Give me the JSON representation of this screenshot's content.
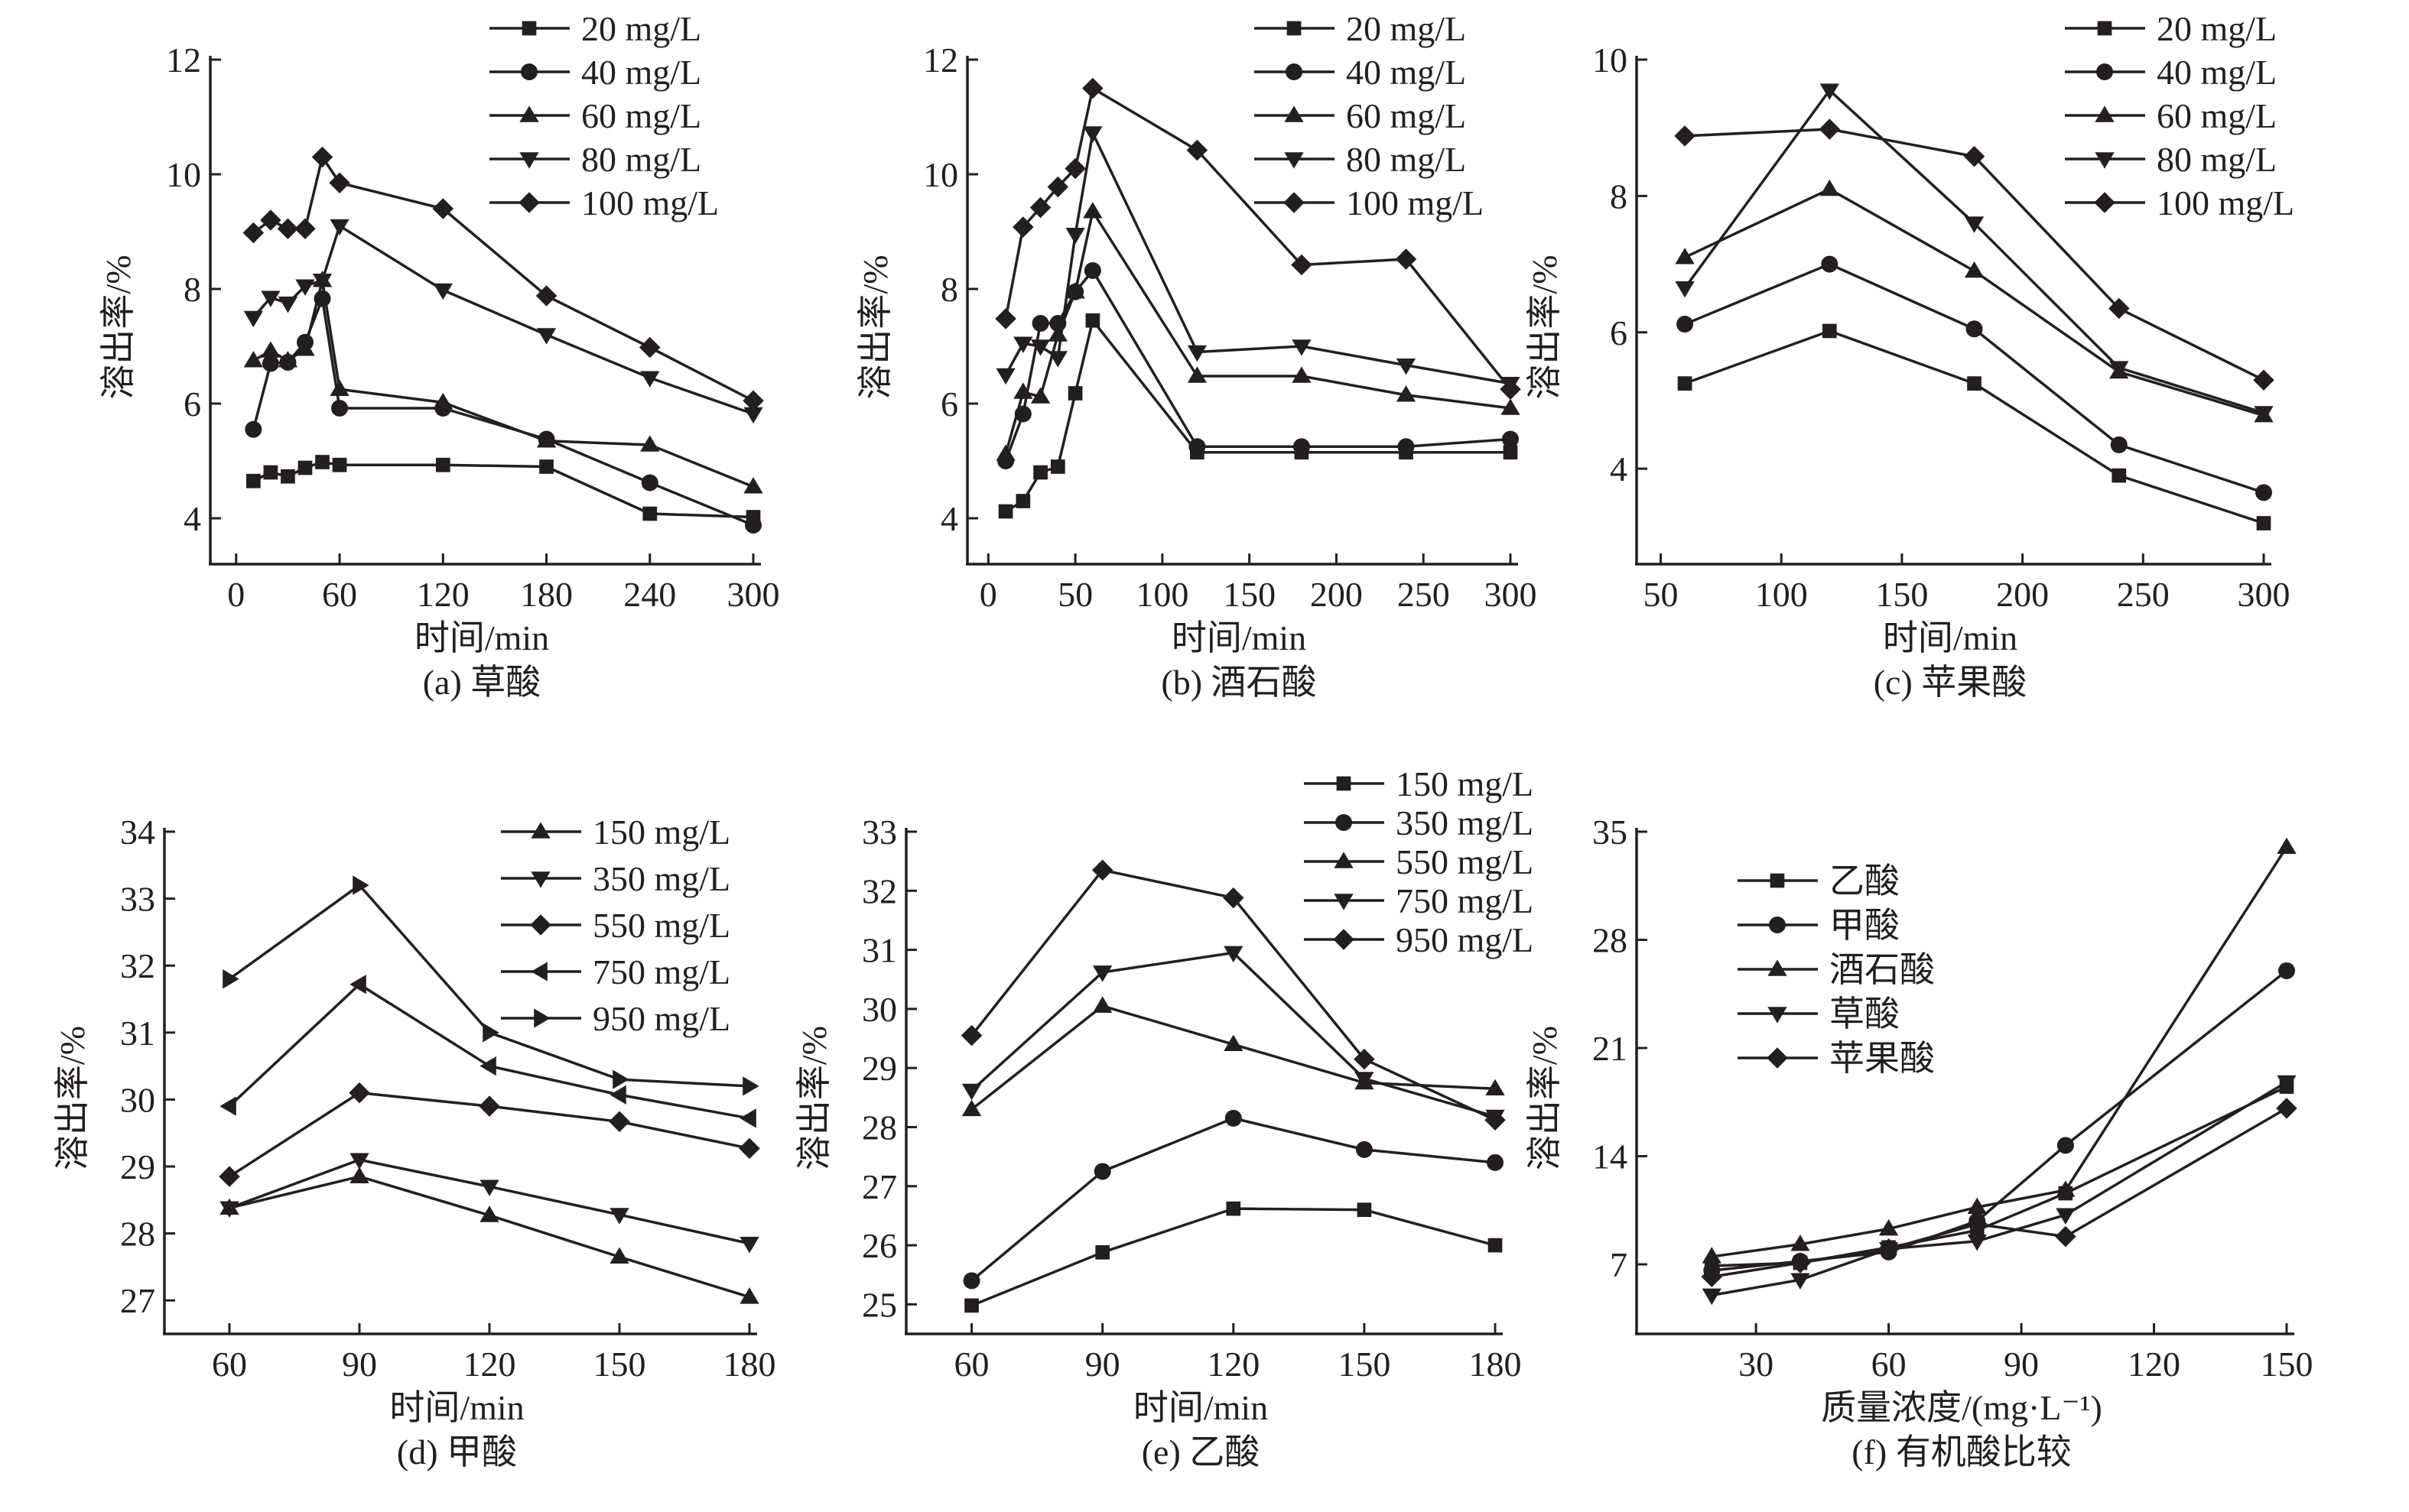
{
  "chart_data": [
    {
      "id": "a",
      "type": "line",
      "caption": "(a) 草酸",
      "xlabel": "时间/min",
      "ylabel": "溶出率/%",
      "xlim": [
        -15,
        300
      ],
      "ylim": [
        3.2,
        12
      ],
      "xticks": [
        0,
        60,
        120,
        180,
        240,
        300
      ],
      "yticks": [
        4,
        6,
        8,
        10,
        12
      ],
      "legend_position": "top-right",
      "x": [
        10,
        20,
        30,
        40,
        50,
        60,
        120,
        180,
        240,
        300
      ],
      "series": [
        {
          "name": "20 mg/L",
          "marker": "square",
          "values": [
            4.65,
            4.8,
            4.73,
            4.88,
            4.98,
            4.93,
            4.93,
            4.9,
            4.08,
            4.02
          ]
        },
        {
          "name": "40 mg/L",
          "marker": "circle",
          "values": [
            5.55,
            6.7,
            6.72,
            7.07,
            7.83,
            5.92,
            5.92,
            5.38,
            4.62,
            3.88
          ]
        },
        {
          "name": "60 mg/L",
          "marker": "triangle-up",
          "values": [
            6.75,
            6.92,
            6.75,
            6.95,
            8.15,
            6.25,
            6.02,
            5.35,
            5.28,
            4.55
          ]
        },
        {
          "name": "80 mg/L",
          "marker": "triangle-down",
          "values": [
            7.5,
            7.85,
            7.75,
            8.05,
            8.15,
            9.1,
            7.98,
            7.2,
            6.45,
            5.82
          ]
        },
        {
          "name": "100 mg/L",
          "marker": "diamond",
          "values": [
            8.98,
            9.2,
            9.05,
            9.05,
            10.3,
            9.85,
            9.4,
            7.88,
            6.98,
            6.05
          ]
        }
      ]
    },
    {
      "id": "b",
      "type": "line",
      "caption": "(b) 酒石酸",
      "xlabel": "时间/min",
      "ylabel": "溶出率/%",
      "xlim": [
        -12,
        300
      ],
      "ylim": [
        3.2,
        12
      ],
      "xticks": [
        0,
        50,
        100,
        150,
        200,
        250,
        300
      ],
      "yticks": [
        4,
        6,
        8,
        10,
        12
      ],
      "legend_position": "top-right",
      "x": [
        10,
        20,
        30,
        40,
        50,
        60,
        120,
        180,
        240,
        300
      ],
      "series": [
        {
          "name": "20 mg/L",
          "marker": "square",
          "values": [
            4.12,
            4.3,
            4.8,
            4.9,
            6.18,
            7.45,
            5.15,
            5.15,
            5.15,
            5.15
          ]
        },
        {
          "name": "40 mg/L",
          "marker": "circle",
          "values": [
            5.0,
            5.82,
            7.4,
            7.4,
            7.95,
            8.32,
            5.25,
            5.25,
            5.25,
            5.38
          ]
        },
        {
          "name": "60 mg/L",
          "marker": "triangle-up",
          "values": [
            5.12,
            6.2,
            6.12,
            7.2,
            7.95,
            9.35,
            6.48,
            6.48,
            6.15,
            5.92
          ]
        },
        {
          "name": "80 mg/L",
          "marker": "triangle-down",
          "values": [
            6.5,
            7.05,
            7.0,
            6.8,
            8.95,
            10.72,
            6.9,
            7.0,
            6.67,
            6.35
          ]
        },
        {
          "name": "100 mg/L",
          "marker": "diamond",
          "values": [
            7.48,
            9.08,
            9.42,
            9.78,
            10.1,
            11.5,
            10.42,
            8.42,
            8.52,
            6.25
          ]
        }
      ]
    },
    {
      "id": "c",
      "type": "line",
      "caption": "(c) 苹果酸",
      "xlabel": "时间/min",
      "ylabel": "溶出率/%",
      "xlim": [
        40,
        300
      ],
      "ylim": [
        2.6,
        10
      ],
      "xticks": [
        50,
        100,
        150,
        200,
        250,
        300
      ],
      "yticks": [
        4,
        6,
        8,
        10
      ],
      "legend_position": "top-right",
      "x": [
        60,
        120,
        180,
        240,
        300
      ],
      "series": [
        {
          "name": "20 mg/L",
          "marker": "square",
          "values": [
            5.25,
            6.02,
            5.25,
            3.9,
            3.2
          ]
        },
        {
          "name": "40 mg/L",
          "marker": "circle",
          "values": [
            6.12,
            7.0,
            6.05,
            4.35,
            3.65
          ]
        },
        {
          "name": "60 mg/L",
          "marker": "triangle-up",
          "values": [
            7.1,
            8.1,
            6.9,
            5.42,
            4.78
          ]
        },
        {
          "name": "80 mg/L",
          "marker": "triangle-down",
          "values": [
            6.65,
            9.55,
            7.6,
            5.48,
            4.82
          ]
        },
        {
          "name": "100 mg/L",
          "marker": "diamond",
          "values": [
            8.88,
            8.98,
            8.58,
            6.35,
            5.3
          ]
        }
      ]
    },
    {
      "id": "d",
      "type": "line",
      "caption": "(d) 甲酸",
      "xlabel": "时间/min",
      "ylabel": "溶出率/%",
      "xlim": [
        45,
        180
      ],
      "ylim": [
        26.5,
        34
      ],
      "xticks": [
        60,
        90,
        120,
        150,
        180
      ],
      "yticks": [
        27,
        28,
        29,
        30,
        31,
        32,
        33,
        34
      ],
      "legend_position": "top-right",
      "x": [
        60,
        90,
        120,
        150,
        180
      ],
      "series": [
        {
          "name": "150 mg/L",
          "marker": "triangle-up",
          "values": [
            28.38,
            28.85,
            28.27,
            27.65,
            27.05
          ]
        },
        {
          "name": "350 mg/L",
          "marker": "triangle-down",
          "values": [
            28.38,
            29.1,
            28.7,
            28.28,
            27.85
          ]
        },
        {
          "name": "550 mg/L",
          "marker": "diamond",
          "values": [
            28.85,
            30.1,
            29.9,
            29.67,
            29.27
          ]
        },
        {
          "name": "750 mg/L",
          "marker": "triangle-left",
          "values": [
            29.9,
            31.72,
            30.5,
            30.07,
            29.72
          ]
        },
        {
          "name": "950 mg/L",
          "marker": "triangle-right",
          "values": [
            31.8,
            33.2,
            31.0,
            30.3,
            30.2
          ]
        }
      ]
    },
    {
      "id": "e",
      "type": "line",
      "caption": "(e) 乙酸",
      "xlabel": "时间/min",
      "ylabel": "溶出率/%",
      "xlim": [
        45,
        180
      ],
      "ylim": [
        24.5,
        33
      ],
      "xticks": [
        60,
        90,
        120,
        150,
        180
      ],
      "yticks": [
        25,
        26,
        27,
        28,
        29,
        30,
        31,
        32,
        33
      ],
      "legend_position": "top-right",
      "x": [
        60,
        90,
        120,
        150,
        180
      ],
      "series": [
        {
          "name": "150 mg/L",
          "marker": "square",
          "values": [
            24.98,
            25.88,
            26.62,
            26.6,
            26.0
          ]
        },
        {
          "name": "350 mg/L",
          "marker": "circle",
          "values": [
            25.4,
            27.25,
            28.15,
            27.62,
            27.4
          ]
        },
        {
          "name": "550 mg/L",
          "marker": "triangle-up",
          "values": [
            28.3,
            30.05,
            29.4,
            28.75,
            28.65
          ]
        },
        {
          "name": "750 mg/L",
          "marker": "triangle-down",
          "values": [
            28.62,
            30.62,
            30.95,
            28.82,
            28.18
          ]
        },
        {
          "name": "950 mg/L",
          "marker": "diamond",
          "values": [
            29.55,
            32.35,
            31.88,
            29.15,
            28.12
          ]
        }
      ]
    },
    {
      "id": "f",
      "type": "line",
      "caption": "(f) 有机酸比较",
      "xlabel": "质量浓度/(mg·L⁻¹)",
      "ylabel": "溶出率/%",
      "xlim": [
        3,
        150
      ],
      "ylim": [
        2.5,
        35
      ],
      "xticks": [
        30,
        60,
        90,
        120,
        150
      ],
      "yticks": [
        7,
        14,
        21,
        28,
        35
      ],
      "legend_position": "top-left",
      "x": [
        20,
        40,
        60,
        80,
        100,
        150
      ],
      "series": [
        {
          "name": "乙酸",
          "marker": "square",
          "values": [
            6.9,
            7.1,
            8.1,
            9.2,
            11.6,
            18.5
          ]
        },
        {
          "name": "甲酸",
          "marker": "circle",
          "values": [
            6.6,
            7.2,
            7.8,
            9.8,
            14.7,
            26.0
          ]
        },
        {
          "name": "酒石酸",
          "marker": "triangle-up",
          "values": [
            7.5,
            8.3,
            9.3,
            10.7,
            11.8,
            34.0
          ]
        },
        {
          "name": "草酸",
          "marker": "triangle-down",
          "values": [
            5.0,
            6.0,
            8.0,
            8.5,
            10.2,
            18.8
          ]
        },
        {
          "name": "苹果酸",
          "marker": "diamond",
          "values": [
            6.2,
            7.1,
            8.0,
            9.6,
            8.8,
            17.1
          ]
        }
      ]
    }
  ]
}
